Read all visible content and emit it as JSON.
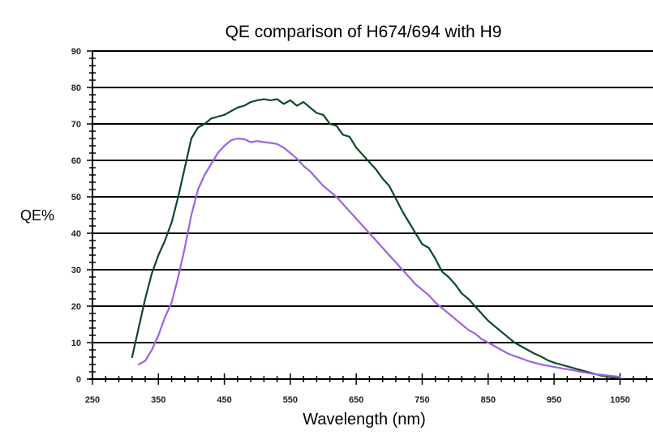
{
  "chart_data": {
    "type": "line",
    "title": "QE comparison of H674/694 with H9",
    "xlabel": "Wavelength (nm)",
    "ylabel": "QE%",
    "xlim": [
      250,
      1100
    ],
    "ylim": [
      0,
      90
    ],
    "x_ticks": [
      250,
      350,
      450,
      550,
      650,
      750,
      850,
      950,
      1050
    ],
    "y_ticks": [
      0,
      10,
      20,
      30,
      40,
      50,
      60,
      70,
      80,
      90
    ],
    "grid": true,
    "series": [
      {
        "name": "H674/694",
        "color": "#0b4a24",
        "x": [
          310,
          320,
          330,
          340,
          350,
          360,
          370,
          380,
          390,
          400,
          410,
          420,
          430,
          440,
          450,
          460,
          470,
          480,
          490,
          500,
          510,
          520,
          530,
          540,
          550,
          560,
          570,
          580,
          590,
          600,
          610,
          620,
          630,
          640,
          650,
          660,
          670,
          680,
          690,
          700,
          710,
          720,
          730,
          740,
          750,
          760,
          770,
          780,
          790,
          800,
          810,
          820,
          830,
          840,
          850,
          860,
          870,
          880,
          890,
          900,
          910,
          920,
          930,
          940,
          950,
          960,
          970,
          980,
          990,
          1000,
          1010,
          1020,
          1030,
          1040,
          1050
        ],
        "values": [
          6,
          14,
          22,
          29,
          34,
          38,
          43,
          50,
          58,
          66,
          69,
          70,
          71.5,
          72,
          72.5,
          73.5,
          74.5,
          75,
          76,
          76.5,
          76.8,
          76.5,
          76.8,
          75.5,
          76.5,
          75,
          76,
          74.5,
          73,
          72.5,
          70,
          69.5,
          67,
          66.5,
          63.5,
          61.5,
          59.5,
          57.5,
          55,
          53,
          49.5,
          46,
          43,
          40,
          37,
          36,
          33,
          29.5,
          28,
          26,
          23.5,
          22,
          20,
          18,
          16,
          14.5,
          13,
          11.5,
          10,
          9,
          8,
          7,
          6.2,
          5.2,
          4.5,
          4,
          3.5,
          3,
          2.5,
          2,
          1.5,
          1,
          0.7,
          0.4,
          0.2
        ]
      },
      {
        "name": "H9",
        "color": "#9f62e2",
        "x": [
          320,
          330,
          340,
          350,
          360,
          370,
          380,
          390,
          400,
          410,
          420,
          430,
          440,
          450,
          460,
          470,
          480,
          490,
          500,
          510,
          520,
          530,
          540,
          550,
          560,
          570,
          580,
          590,
          600,
          610,
          620,
          630,
          640,
          650,
          660,
          670,
          680,
          690,
          700,
          710,
          720,
          730,
          740,
          750,
          760,
          770,
          780,
          790,
          800,
          810,
          820,
          830,
          840,
          850,
          860,
          870,
          880,
          890,
          900,
          910,
          920,
          930,
          940,
          950,
          960,
          970,
          980,
          990,
          1000,
          1010,
          1020,
          1030,
          1040,
          1050
        ],
        "values": [
          4,
          5,
          8,
          12,
          17,
          21,
          28,
          36,
          45,
          52,
          56,
          59,
          62,
          64,
          65.5,
          66,
          65.8,
          65,
          65.3,
          65,
          64.8,
          64.5,
          63.5,
          62,
          60.5,
          58.5,
          57,
          55,
          53,
          51.5,
          50,
          48,
          46,
          44,
          42,
          40,
          38,
          36,
          34,
          32,
          30,
          28,
          26,
          24.5,
          23,
          21,
          19.5,
          18,
          16.5,
          15,
          13.5,
          12.5,
          11,
          10,
          9,
          8,
          7,
          6.3,
          5.7,
          5,
          4.5,
          4,
          3.7,
          3.3,
          3,
          2.7,
          2.4,
          2,
          1.7,
          1.4,
          1.2,
          1,
          0.8,
          0.6
        ]
      }
    ]
  }
}
